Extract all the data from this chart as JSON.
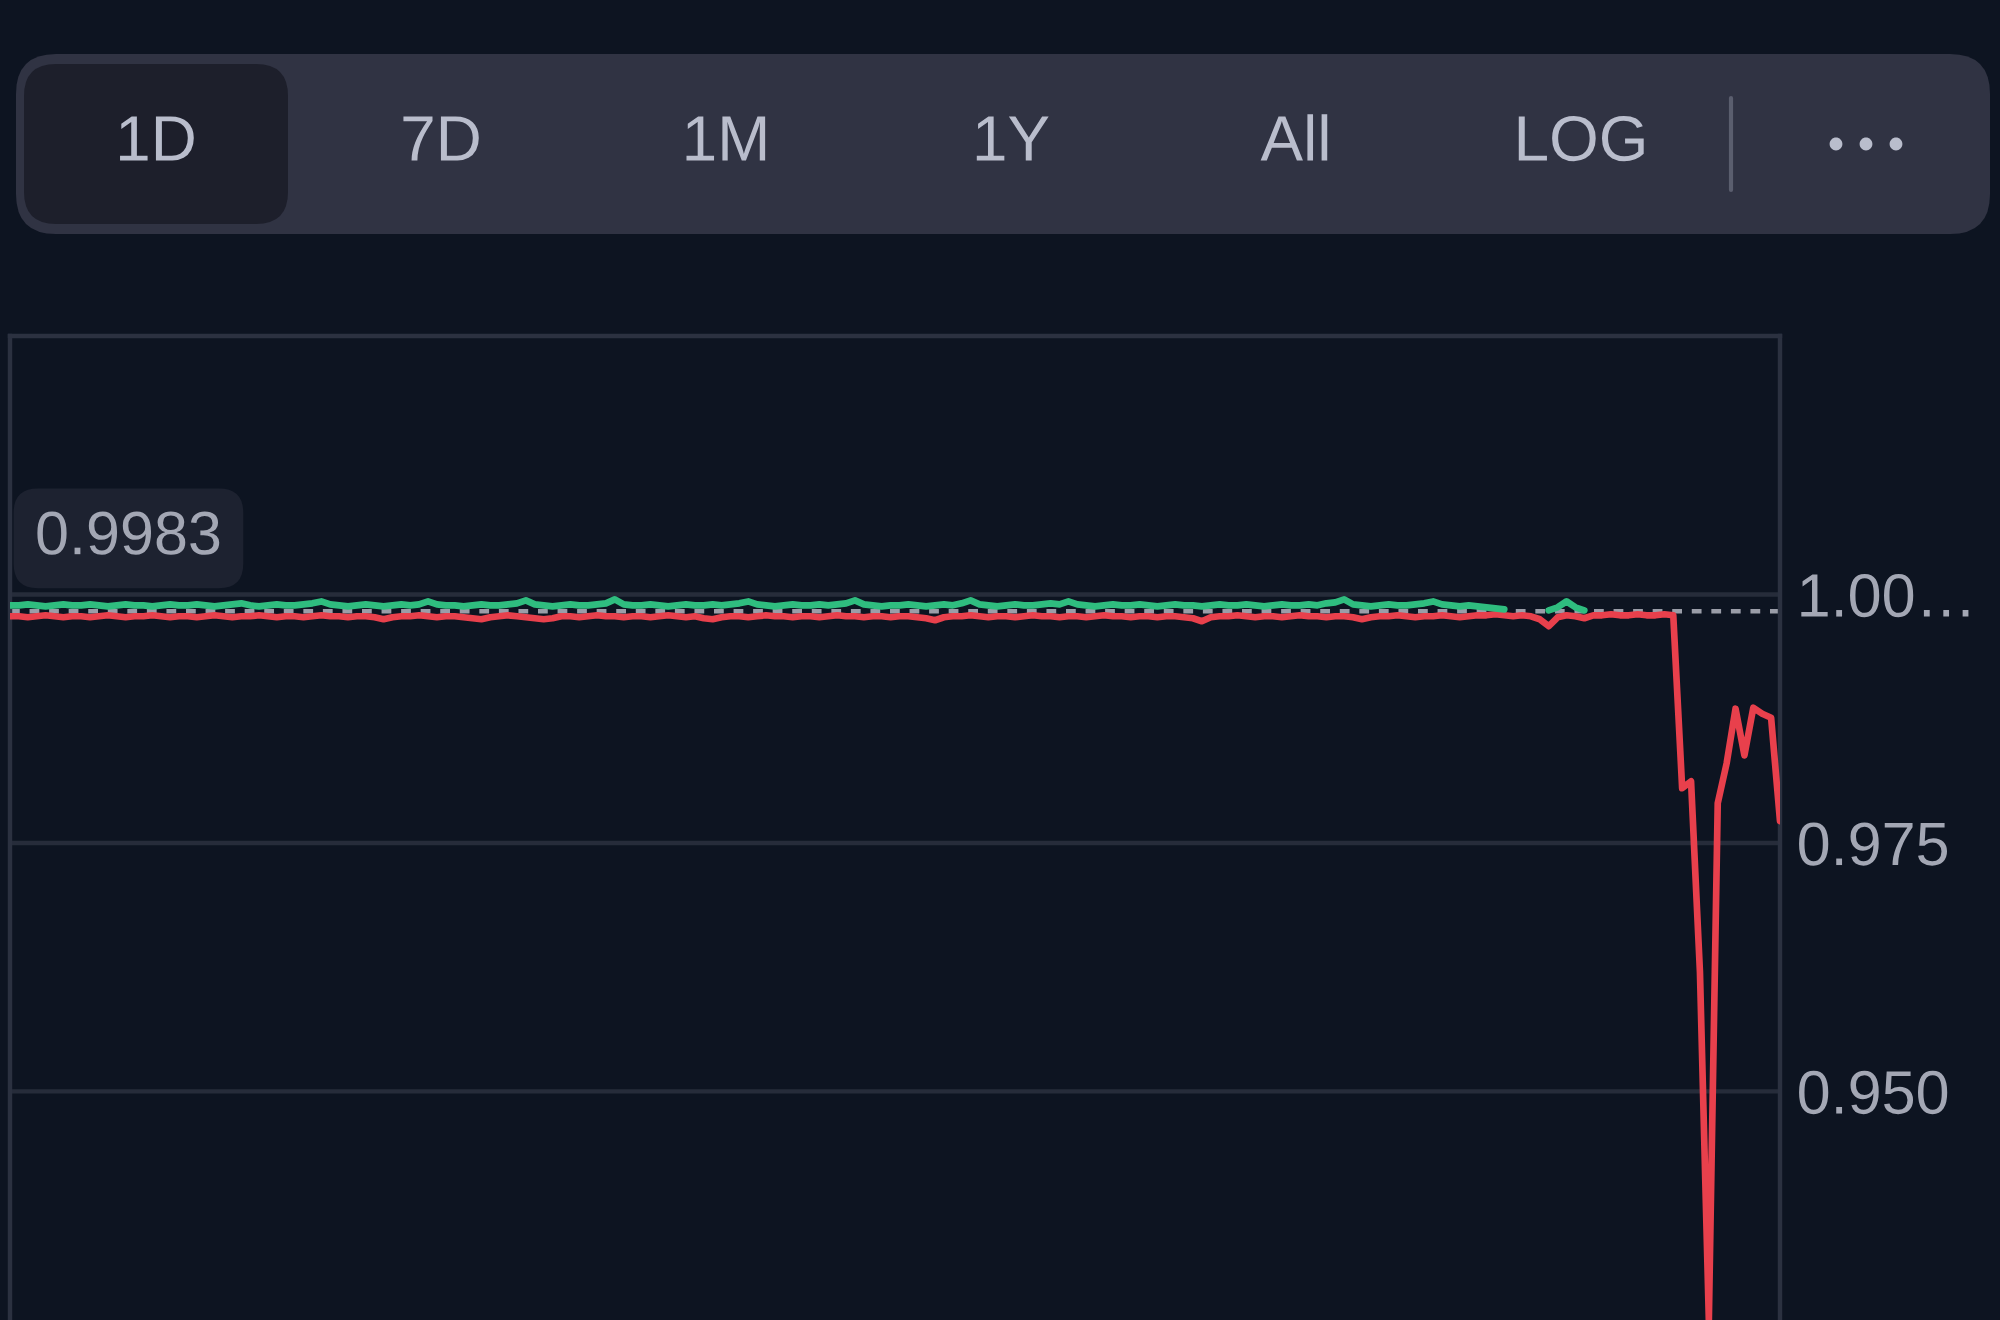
{
  "chart_data": {
    "type": "line",
    "categories": [
      null,
      null,
      null,
      null,
      null,
      null,
      null,
      null,
      null,
      null,
      null,
      null,
      null,
      null,
      null,
      null,
      null,
      null,
      null,
      null,
      null,
      null,
      null,
      null,
      null,
      null,
      null,
      null,
      null,
      null,
      null,
      null,
      null,
      null,
      null,
      null,
      null,
      null,
      null,
      null,
      null,
      null,
      null,
      null,
      null,
      null,
      null,
      null,
      null,
      null,
      null,
      null,
      null,
      null,
      null,
      null,
      null,
      null,
      null,
      null,
      null,
      null,
      null,
      null,
      null,
      null,
      null,
      null,
      null,
      null,
      null,
      null,
      null,
      null,
      null,
      null,
      null,
      null,
      null,
      null,
      null,
      null,
      null,
      null,
      null,
      null,
      null,
      null,
      null,
      null,
      null,
      null,
      null,
      null,
      null,
      null,
      null,
      null,
      null,
      null,
      null,
      null,
      null,
      null,
      null,
      null,
      null,
      null,
      null,
      null,
      null,
      null,
      null,
      null,
      null,
      null,
      null,
      null,
      null,
      null,
      null,
      null,
      null,
      null,
      null,
      null,
      null,
      null,
      null,
      null,
      null,
      null,
      null,
      null,
      null,
      null,
      null,
      null,
      null,
      null,
      null,
      null,
      null,
      null,
      null,
      null,
      null,
      null,
      null,
      null,
      null,
      null,
      null,
      null,
      null,
      null,
      null,
      null,
      null,
      null,
      null,
      null,
      null,
      null,
      null,
      null,
      null,
      null,
      null,
      null,
      null,
      null,
      null,
      null,
      null,
      null,
      null,
      null,
      null,
      null,
      null,
      null,
      null,
      null,
      null,
      null,
      null,
      null,
      null,
      null,
      null,
      null,
      null,
      null,
      null,
      null,
      null,
      null,
      null,
      null
    ],
    "series": [
      {
        "color": "#2fbd7f",
        "values": [
          0.9989,
          0.9989,
          0.999,
          0.9989,
          0.9988,
          0.9989,
          0.999,
          0.9989,
          0.9989,
          0.999,
          0.9989,
          0.9988,
          0.9989,
          0.999,
          0.9989,
          0.9989,
          0.9988,
          0.9989,
          0.999,
          0.9989,
          0.9989,
          0.999,
          0.9989,
          0.9988,
          0.9989,
          0.999,
          0.9991,
          0.9989,
          0.9988,
          0.9989,
          0.999,
          0.9989,
          0.9989,
          0.999,
          0.9991,
          0.9993,
          0.999,
          0.9989,
          0.9988,
          0.9989,
          0.999,
          0.9989,
          0.9988,
          0.9989,
          0.999,
          0.9989,
          0.999,
          0.9993,
          0.999,
          0.9989,
          0.9989,
          0.9988,
          0.9989,
          0.999,
          0.9989,
          0.9989,
          0.999,
          0.9991,
          0.9994,
          0.999,
          0.9989,
          0.9988,
          0.9989,
          0.999,
          0.9989,
          0.9989,
          0.999,
          0.9991,
          0.9995,
          0.999,
          0.9989,
          0.9989,
          0.999,
          0.9989,
          0.9988,
          0.9989,
          0.999,
          0.9989,
          0.9989,
          0.999,
          0.9989,
          0.999,
          0.9991,
          0.9993,
          0.999,
          0.9989,
          0.9988,
          0.9989,
          0.999,
          0.9989,
          0.9989,
          0.999,
          0.9989,
          0.999,
          0.9991,
          0.9994,
          0.999,
          0.9989,
          0.9988,
          0.9989,
          0.9989,
          0.999,
          0.9989,
          0.9988,
          0.9989,
          0.999,
          0.9989,
          0.9991,
          0.9994,
          0.999,
          0.9989,
          0.9988,
          0.9989,
          0.999,
          0.9989,
          0.9989,
          0.999,
          0.9991,
          0.999,
          0.9993,
          0.999,
          0.9989,
          0.9988,
          0.9989,
          0.999,
          0.9989,
          0.9989,
          0.999,
          0.9989,
          0.9988,
          0.9989,
          0.999,
          0.9989,
          0.9989,
          0.9988,
          0.9989,
          0.999,
          0.9989,
          0.9989,
          0.999,
          0.9989,
          0.9988,
          0.9989,
          0.999,
          0.9989,
          0.9989,
          0.999,
          0.9989,
          0.9991,
          0.9992,
          0.9995,
          0.999,
          0.9989,
          0.9988,
          0.9989,
          0.999,
          0.9989,
          0.9989,
          0.999,
          0.9991,
          0.9993,
          0.999,
          0.9989,
          0.9988,
          0.9989,
          0.9988,
          0.9987,
          0.9986,
          0.9985,
          null,
          null,
          null,
          null,
          0.9984,
          0.9987,
          0.9993,
          0.9987,
          0.9984,
          null,
          null,
          null,
          null,
          null,
          null,
          null,
          null,
          null,
          null,
          null,
          null,
          null,
          null,
          null,
          null,
          null,
          null,
          null,
          null,
          null,
          null
        ]
      },
      {
        "color": "#e8404c",
        "values": [
          0.9978,
          0.9978,
          0.9977,
          0.9978,
          0.9979,
          0.9978,
          0.9977,
          0.9978,
          0.9978,
          0.9977,
          0.9978,
          0.9979,
          0.9978,
          0.9977,
          0.9978,
          0.9978,
          0.9979,
          0.9978,
          0.9977,
          0.9978,
          0.9978,
          0.9977,
          0.9978,
          0.9979,
          0.9978,
          0.9977,
          0.9978,
          0.9978,
          0.9979,
          0.9978,
          0.9977,
          0.9978,
          0.9978,
          0.9977,
          0.9978,
          0.9979,
          0.9978,
          0.9978,
          0.9977,
          0.9978,
          0.9978,
          0.9977,
          0.9975,
          0.9977,
          0.9978,
          0.9978,
          0.9979,
          0.9978,
          0.9977,
          0.9978,
          0.9978,
          0.9977,
          0.9976,
          0.9975,
          0.9977,
          0.9978,
          0.9979,
          0.9978,
          0.9977,
          0.9976,
          0.9975,
          0.9976,
          0.9978,
          0.9978,
          0.9977,
          0.9978,
          0.9979,
          0.9978,
          0.9978,
          0.9977,
          0.9978,
          0.9978,
          0.9977,
          0.9978,
          0.9979,
          0.9978,
          0.9977,
          0.9978,
          0.9976,
          0.9975,
          0.9977,
          0.9978,
          0.9978,
          0.9977,
          0.9978,
          0.9979,
          0.9978,
          0.9978,
          0.9977,
          0.9978,
          0.9978,
          0.9977,
          0.9978,
          0.9979,
          0.9978,
          0.9978,
          0.9977,
          0.9978,
          0.9978,
          0.9977,
          0.9978,
          0.9978,
          0.9977,
          0.9976,
          0.9974,
          0.9977,
          0.9978,
          0.9978,
          0.9979,
          0.9978,
          0.9977,
          0.9978,
          0.9978,
          0.9977,
          0.9978,
          0.9979,
          0.9978,
          0.9978,
          0.9977,
          0.9978,
          0.9978,
          0.9977,
          0.9978,
          0.9979,
          0.9978,
          0.9978,
          0.9977,
          0.9978,
          0.9978,
          0.9977,
          0.9978,
          0.9978,
          0.9977,
          0.9976,
          0.9973,
          0.9977,
          0.9978,
          0.9978,
          0.9979,
          0.9978,
          0.9977,
          0.9978,
          0.9978,
          0.9977,
          0.9978,
          0.9979,
          0.9978,
          0.9978,
          0.9977,
          0.9978,
          0.9978,
          0.9977,
          0.9975,
          0.9977,
          0.9978,
          0.9978,
          0.9979,
          0.9978,
          0.9977,
          0.9978,
          0.9978,
          0.9979,
          0.9978,
          0.9977,
          0.9978,
          0.9979,
          0.9979,
          0.998,
          0.9979,
          0.9978,
          0.9979,
          0.9978,
          0.9975,
          0.9968,
          0.9977,
          0.9979,
          0.9978,
          0.9976,
          0.9979,
          0.9979,
          0.998,
          0.9979,
          0.9979,
          0.998,
          0.9979,
          0.9979,
          0.998,
          0.9979,
          0.9805,
          0.9812,
          0.962,
          0.927,
          0.979,
          0.983,
          0.9885,
          0.9838,
          0.9886,
          0.988,
          0.9876,
          0.9772
        ]
      }
    ],
    "ylim": [
      0.927,
      1.026
    ],
    "yticks": [
      {
        "value": 1.0,
        "label": "1.00…"
      },
      0.975,
      {
        "value": 0.95,
        "label": "0.950"
      }
    ],
    "tick_labels": "y",
    "grid": "y",
    "legend": false,
    "marker": "none",
    "line_style": "solid",
    "ref_lines": [
      {
        "axis": "y",
        "value": 0.9983,
        "label": "0.9983",
        "color": "#9a9da8",
        "line_style": "dashed"
      }
    ],
    "annotations": [
      "1D",
      "7D",
      "1M",
      "1Y",
      "All",
      "LOG"
    ]
  }
}
